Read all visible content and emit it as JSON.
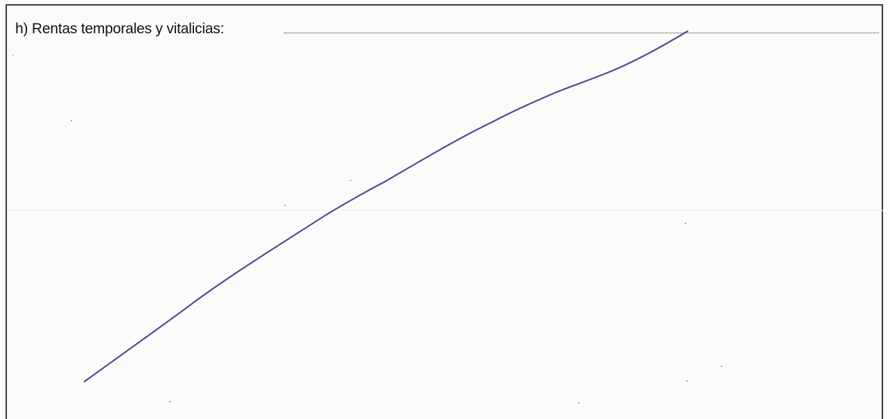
{
  "form": {
    "section_label": "h) Rentas temporales y vitalicias:",
    "field_value": ""
  },
  "colors": {
    "ink": "#4b4d9a",
    "border": "#3a3a3a",
    "text": "#111111"
  }
}
